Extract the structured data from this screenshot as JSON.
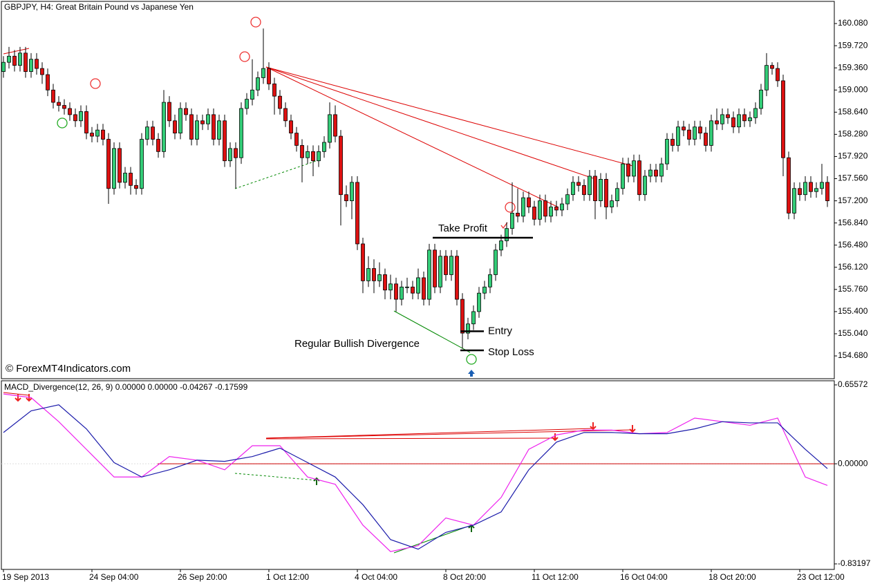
{
  "chart_data": [
    {
      "type": "candlestick",
      "title": "GBPJPY, H4:  Great Britain Pound vs Japanese Yen",
      "watermark": "© ForexMT4Indicators.com",
      "up_color": "#33cc77",
      "down_color": "#dd1111",
      "xlim": [
        -0.375,
        150.25
      ],
      "ylim": [
        154.31,
        160.44
      ],
      "yticks": [
        {
          "value": 160.08,
          "label": "160.080"
        },
        {
          "value": 159.72,
          "label": "159.720"
        },
        {
          "value": 159.36,
          "label": "159.360"
        },
        {
          "value": 159.0,
          "label": "159.000"
        },
        {
          "value": 158.64,
          "label": "158.640"
        },
        {
          "value": 158.28,
          "label": "158.280"
        },
        {
          "value": 157.92,
          "label": "157.920"
        },
        {
          "value": 157.56,
          "label": "157.560"
        },
        {
          "value": 157.2,
          "label": "157.200"
        },
        {
          "value": 156.84,
          "label": "156.840"
        },
        {
          "value": 156.48,
          "label": "156.480"
        },
        {
          "value": 156.12,
          "label": "156.120"
        },
        {
          "value": 155.76,
          "label": "155.760"
        },
        {
          "value": 155.4,
          "label": "155.400"
        },
        {
          "value": 155.04,
          "label": "155.040"
        },
        {
          "value": 154.68,
          "label": "154.680"
        }
      ],
      "annotations": [
        {
          "text": "Take Profit",
          "value": 156.6
        },
        {
          "text": "Entry",
          "value": 155.08
        },
        {
          "text": "Stop Loss",
          "value": 154.77
        },
        {
          "text": "Regular Bullish Divergence"
        }
      ],
      "open": [
        159.3,
        159.45,
        159.55,
        159.4,
        159.6,
        159.3,
        159.5,
        159.35,
        159.25,
        159.0,
        158.8,
        158.75,
        158.7,
        158.6,
        158.5,
        158.65,
        158.3,
        158.25,
        158.35,
        158.2,
        157.4,
        158.05,
        157.5,
        157.65,
        157.45,
        157.4,
        158.2,
        158.4,
        158.2,
        158.0,
        158.8,
        158.5,
        158.3,
        158.7,
        158.6,
        158.2,
        158.5,
        158.45,
        158.6,
        158.2,
        158.5,
        157.85,
        158.05,
        157.9,
        158.7,
        158.85,
        159.0,
        159.2,
        159.35,
        159.1,
        158.9,
        158.7,
        158.5,
        158.3,
        158.1,
        157.9,
        158.0,
        157.85,
        158.0,
        158.15,
        158.6,
        158.25,
        157.3,
        157.2,
        157.5,
        156.5,
        155.9,
        156.1,
        155.9,
        156.0,
        155.75,
        155.85,
        155.6,
        155.8,
        155.8,
        155.7,
        155.95,
        155.6,
        156.4,
        155.8,
        156.3,
        156.0,
        156.3,
        155.6,
        155.05,
        155.2,
        155.4,
        155.7,
        155.8,
        156.0,
        156.4,
        156.55,
        156.75,
        157.0,
        156.95,
        157.25,
        157.1,
        156.9,
        157.2,
        156.95,
        157.1,
        157.05,
        157.15,
        157.3,
        157.5,
        157.45,
        157.3,
        157.6,
        157.2,
        157.55,
        157.1,
        157.2,
        157.4,
        157.8,
        157.6,
        157.85,
        157.3,
        157.6,
        157.7,
        157.6,
        157.8,
        158.2,
        158.1,
        158.4,
        158.35,
        158.2,
        158.4,
        158.3,
        158.1,
        158.5,
        158.45,
        158.6,
        158.55,
        158.4,
        158.6,
        158.5,
        158.55,
        158.7,
        159.0,
        159.4,
        159.35,
        159.15,
        157.9,
        157.0,
        157.4,
        157.3,
        157.5,
        157.35,
        157.4,
        157.5
      ],
      "high": [
        159.55,
        159.7,
        159.65,
        159.7,
        159.7,
        159.6,
        159.6,
        159.45,
        159.35,
        159.1,
        158.9,
        158.85,
        158.8,
        158.7,
        158.75,
        158.75,
        158.4,
        158.45,
        158.45,
        158.3,
        158.15,
        158.15,
        157.75,
        157.75,
        157.55,
        158.3,
        158.5,
        158.5,
        158.3,
        159.0,
        158.9,
        158.6,
        158.8,
        158.8,
        158.7,
        158.6,
        158.6,
        158.7,
        158.7,
        158.6,
        158.6,
        158.15,
        158.15,
        158.8,
        158.95,
        159.5,
        159.3,
        160.0,
        159.45,
        159.2,
        159.0,
        158.8,
        158.6,
        158.4,
        158.2,
        158.1,
        158.1,
        158.1,
        158.25,
        158.8,
        158.75,
        158.35,
        157.45,
        157.6,
        157.6,
        156.6,
        156.3,
        156.25,
        156.2,
        156.1,
        156.0,
        155.95,
        155.9,
        155.95,
        155.9,
        156.1,
        156.05,
        156.5,
        156.5,
        156.4,
        156.4,
        156.4,
        156.4,
        155.7,
        155.3,
        155.5,
        155.8,
        155.9,
        156.1,
        156.5,
        156.65,
        156.85,
        157.5,
        157.4,
        157.35,
        157.35,
        157.2,
        157.3,
        157.3,
        157.2,
        157.2,
        157.25,
        157.4,
        157.6,
        157.6,
        157.55,
        157.7,
        157.7,
        157.65,
        157.65,
        157.3,
        157.5,
        157.9,
        157.9,
        157.95,
        157.95,
        157.7,
        157.8,
        157.8,
        157.9,
        158.3,
        158.3,
        158.5,
        158.5,
        158.45,
        158.5,
        158.5,
        158.4,
        158.6,
        158.7,
        158.7,
        158.7,
        158.65,
        158.7,
        158.7,
        158.65,
        158.8,
        159.1,
        159.6,
        159.45,
        159.45,
        159.25,
        158.0,
        157.5,
        157.5,
        157.6,
        157.6,
        157.5,
        157.8,
        157.6
      ],
      "low": [
        159.2,
        159.35,
        159.3,
        159.3,
        159.2,
        159.2,
        159.25,
        159.1,
        158.9,
        158.7,
        158.65,
        158.6,
        158.5,
        158.4,
        158.4,
        158.2,
        158.15,
        158.15,
        158.1,
        157.15,
        157.3,
        157.4,
        157.4,
        157.3,
        157.3,
        157.3,
        158.1,
        158.1,
        157.9,
        157.9,
        158.4,
        158.2,
        158.2,
        158.5,
        158.1,
        158.1,
        158.35,
        158.35,
        158.1,
        158.1,
        157.75,
        157.75,
        157.4,
        157.8,
        158.6,
        158.75,
        158.9,
        159.1,
        159.0,
        158.6,
        158.6,
        158.4,
        158.2,
        158.0,
        157.5,
        157.8,
        157.6,
        157.75,
        157.9,
        158.05,
        158.15,
        156.8,
        157.1,
        156.9,
        156.4,
        155.7,
        155.8,
        155.7,
        155.8,
        155.6,
        155.6,
        155.4,
        155.5,
        155.7,
        155.6,
        155.6,
        155.5,
        155.5,
        155.7,
        155.7,
        155.9,
        155.9,
        155.5,
        154.8,
        154.95,
        155.1,
        155.3,
        155.6,
        155.7,
        155.9,
        156.3,
        156.45,
        156.65,
        156.85,
        156.85,
        157.0,
        156.8,
        156.8,
        156.85,
        156.85,
        156.95,
        156.95,
        157.05,
        157.2,
        157.35,
        157.2,
        157.2,
        156.9,
        157.1,
        156.9,
        157.0,
        157.1,
        157.3,
        157.5,
        157.5,
        157.2,
        157.2,
        157.5,
        157.5,
        157.5,
        157.7,
        158.0,
        158.0,
        158.25,
        158.1,
        158.1,
        158.2,
        158.0,
        158.0,
        158.35,
        158.35,
        158.45,
        158.3,
        158.3,
        158.4,
        158.4,
        158.45,
        158.6,
        158.9,
        159.25,
        159.05,
        157.6,
        156.9,
        156.9,
        157.2,
        157.2,
        157.25,
        157.25,
        157.3,
        157.1
      ],
      "close": [
        159.45,
        159.55,
        159.4,
        159.6,
        159.3,
        159.5,
        159.35,
        159.25,
        159.0,
        158.8,
        158.75,
        158.7,
        158.6,
        158.5,
        158.65,
        158.3,
        158.25,
        158.35,
        158.2,
        157.4,
        158.05,
        157.5,
        157.65,
        157.45,
        157.4,
        158.2,
        158.4,
        158.2,
        158.0,
        158.8,
        158.5,
        158.3,
        158.7,
        158.6,
        158.2,
        158.5,
        158.45,
        158.6,
        158.2,
        158.5,
        157.85,
        158.05,
        157.9,
        158.7,
        158.85,
        159.0,
        159.2,
        159.35,
        159.1,
        158.9,
        158.7,
        158.5,
        158.3,
        158.1,
        157.9,
        158.0,
        157.85,
        158.0,
        158.15,
        158.6,
        158.25,
        157.3,
        157.2,
        157.5,
        156.5,
        155.9,
        156.1,
        155.9,
        156.0,
        155.75,
        155.85,
        155.6,
        155.8,
        155.8,
        155.7,
        155.95,
        155.6,
        156.4,
        155.8,
        156.3,
        156.0,
        156.3,
        155.6,
        155.05,
        155.2,
        155.4,
        155.7,
        155.8,
        156.0,
        156.4,
        156.55,
        156.75,
        157.0,
        156.95,
        157.25,
        157.1,
        156.9,
        157.2,
        156.95,
        157.1,
        157.05,
        157.15,
        157.3,
        157.5,
        157.45,
        157.3,
        157.6,
        157.2,
        157.55,
        157.1,
        157.2,
        157.4,
        157.8,
        157.6,
        157.85,
        157.3,
        157.6,
        157.7,
        157.6,
        157.8,
        158.2,
        158.1,
        158.4,
        158.35,
        158.2,
        158.4,
        158.3,
        158.1,
        158.5,
        158.45,
        158.6,
        158.55,
        158.4,
        158.6,
        158.5,
        158.55,
        158.7,
        159.0,
        159.4,
        159.35,
        159.15,
        157.9,
        157.0,
        157.4,
        157.3,
        157.5,
        157.35,
        157.4,
        157.5,
        157.2
      ]
    },
    {
      "type": "line",
      "title": "MACD_Divergence(12, 26, 9) 0.00000 0.00000 -0.04267 -0.17599",
      "xlim": [
        -0.375,
        150.25
      ],
      "ylim": [
        -0.878,
        0.69
      ],
      "yticks": [
        0.65572,
        {
          "value": 0,
          "label": "0.00000"
        },
        -0.83197
      ],
      "xticks": [
        {
          "value": 0,
          "label": "19 Sep 2013"
        },
        {
          "value": 16,
          "label": "24 Sep 04:00"
        },
        {
          "value": 32,
          "label": "26 Sep 20:00"
        },
        {
          "value": 48,
          "label": "1 Oct 12:00"
        },
        {
          "value": 64,
          "label": "4 Oct 04:00"
        },
        {
          "value": 80,
          "label": "8 Oct 20:00"
        },
        {
          "value": 96,
          "label": "11 Oct 12:00"
        },
        {
          "value": 112,
          "label": "16 Oct 04:00"
        },
        {
          "value": 128,
          "label": "18 Oct 20:00"
        },
        {
          "value": 144,
          "label": "23 Oct 12:00"
        }
      ],
      "x": [
        0,
        5,
        10,
        15,
        20,
        25,
        30,
        35,
        40,
        45,
        50,
        55,
        60,
        65,
        70,
        75,
        80,
        85,
        90,
        95,
        100,
        105,
        110,
        115,
        120,
        125,
        130,
        135,
        140,
        145,
        149
      ],
      "series": [
        {
          "color": "#ee22ee",
          "values": [
            0.58,
            0.55,
            0.35,
            0.12,
            -0.11,
            -0.11,
            0.06,
            0.03,
            -0.05,
            0.15,
            0.15,
            -0.11,
            -0.17,
            -0.51,
            -0.73,
            -0.68,
            -0.45,
            -0.51,
            -0.28,
            0.12,
            0.24,
            0.28,
            0.28,
            0.25,
            0.26,
            0.38,
            0.35,
            0.32,
            0.38,
            -0.11,
            -0.18
          ]
        },
        {
          "color": "#1a1aaa",
          "values": [
            0.26,
            0.44,
            0.49,
            0.29,
            0.01,
            -0.11,
            -0.05,
            0.03,
            0.02,
            0.06,
            0.13,
            0.01,
            -0.11,
            -0.34,
            -0.63,
            -0.71,
            -0.57,
            -0.51,
            -0.4,
            -0.05,
            0.18,
            0.26,
            0.26,
            0.25,
            0.25,
            0.29,
            0.35,
            0.34,
            0.34,
            0.12,
            -0.04
          ]
        }
      ]
    }
  ]
}
